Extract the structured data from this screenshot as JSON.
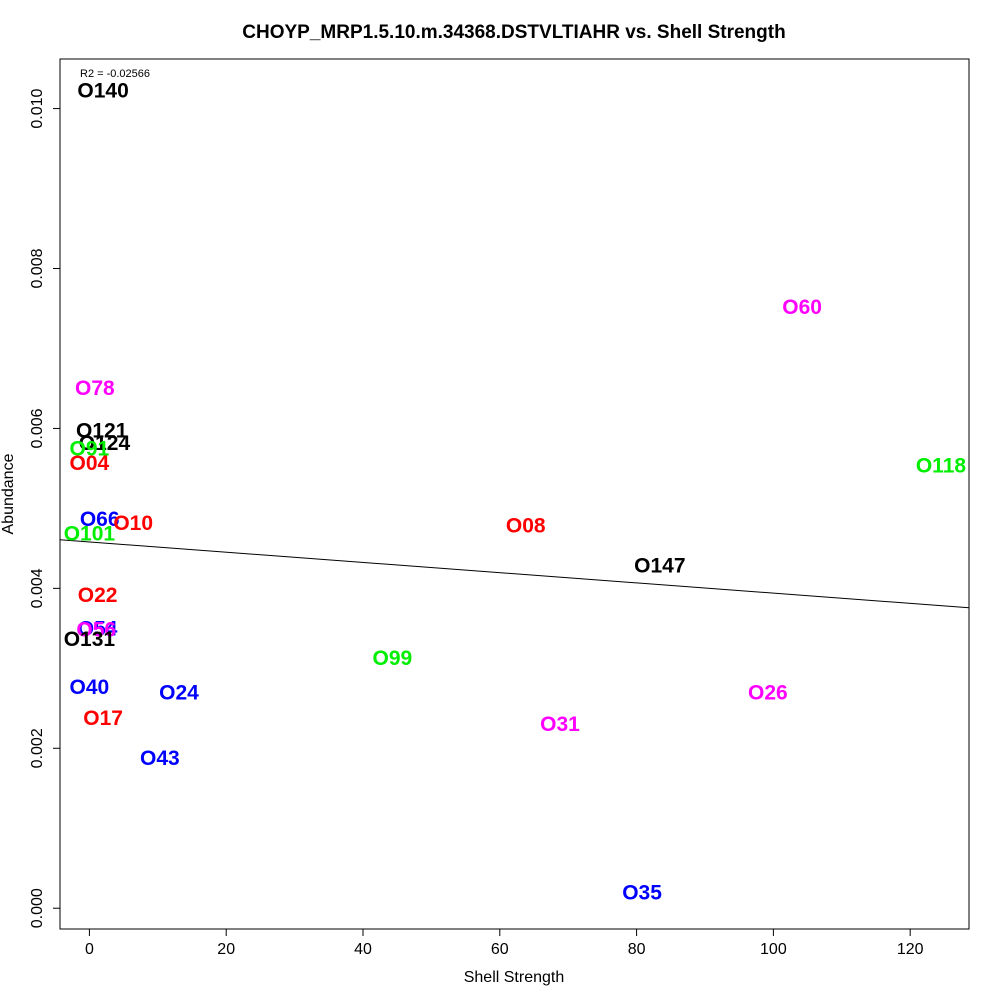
{
  "chart_data": {
    "type": "scatter",
    "title": "CHOYP_MRP1.5.10.m.34368.DSTVLTIAHR vs. Shell Strength",
    "xlabel": "Shell Strength",
    "ylabel": "Abundance",
    "xlim": [
      -4.3,
      128.6
    ],
    "ylim": [
      -0.00026,
      0.01062
    ],
    "x_ticks": [
      0,
      20,
      40,
      60,
      80,
      100,
      120
    ],
    "x_tick_labels": [
      "0",
      "20",
      "40",
      "60",
      "80",
      "100",
      "120"
    ],
    "y_ticks": [
      0.0,
      0.002,
      0.004,
      0.006,
      0.008,
      0.01
    ],
    "y_tick_labels": [
      "0.000",
      "0.002",
      "0.004",
      "0.006",
      "0.008",
      "0.010"
    ],
    "annotation": "R2 = -0.02566",
    "regression": {
      "intercept": 0.00458,
      "slope": -6.4e-06
    },
    "points": [
      {
        "label": "O140",
        "x": 2.0,
        "y": 0.01022,
        "color": "#000000"
      },
      {
        "label": "O60",
        "x": 104.2,
        "y": 0.00751,
        "color": "#ff00ff"
      },
      {
        "label": "O78",
        "x": 0.8,
        "y": 0.0065,
        "color": "#ff00ff"
      },
      {
        "label": "O121",
        "x": 1.8,
        "y": 0.00597,
        "color": "#000000"
      },
      {
        "label": "O124",
        "x": 2.2,
        "y": 0.00581,
        "color": "#000000"
      },
      {
        "label": "O91",
        "x": 0.0,
        "y": 0.00574,
        "color": "#00ee00"
      },
      {
        "label": "O04",
        "x": 0.0,
        "y": 0.00556,
        "color": "#ff0000"
      },
      {
        "label": "O118",
        "x": 124.5,
        "y": 0.00553,
        "color": "#00ee00"
      },
      {
        "label": "O66",
        "x": 1.5,
        "y": 0.00486,
        "color": "#0000ff"
      },
      {
        "label": "O10",
        "x": 6.4,
        "y": 0.00481,
        "color": "#ff0000"
      },
      {
        "label": "O08",
        "x": 63.8,
        "y": 0.00478,
        "color": "#ff0000"
      },
      {
        "label": "O101",
        "x": 0.0,
        "y": 0.00468,
        "color": "#00ee00"
      },
      {
        "label": "O147",
        "x": 83.4,
        "y": 0.00428,
        "color": "#000000"
      },
      {
        "label": "O22",
        "x": 1.2,
        "y": 0.00391,
        "color": "#ff0000"
      },
      {
        "label": "O54",
        "x": 1.2,
        "y": 0.00349,
        "color": "#0000ff"
      },
      {
        "label": "O56",
        "x": 1.0,
        "y": 0.00348,
        "color": "#ff00ff"
      },
      {
        "label": "O131",
        "x": 0.0,
        "y": 0.00336,
        "color": "#000000"
      },
      {
        "label": "O99",
        "x": 44.3,
        "y": 0.00312,
        "color": "#00ee00"
      },
      {
        "label": "O40",
        "x": 0.0,
        "y": 0.00276,
        "color": "#0000ff"
      },
      {
        "label": "O24",
        "x": 13.1,
        "y": 0.00269,
        "color": "#0000ff"
      },
      {
        "label": "O26",
        "x": 99.2,
        "y": 0.00269,
        "color": "#ff00ff"
      },
      {
        "label": "O31",
        "x": 68.8,
        "y": 0.0023,
        "color": "#ff00ff"
      },
      {
        "label": "O17",
        "x": 2.0,
        "y": 0.00237,
        "color": "#ff0000"
      },
      {
        "label": "O43",
        "x": 10.3,
        "y": 0.00187,
        "color": "#0000ff"
      },
      {
        "label": "O35",
        "x": 80.8,
        "y": 0.00019,
        "color": "#0000ff"
      }
    ]
  }
}
